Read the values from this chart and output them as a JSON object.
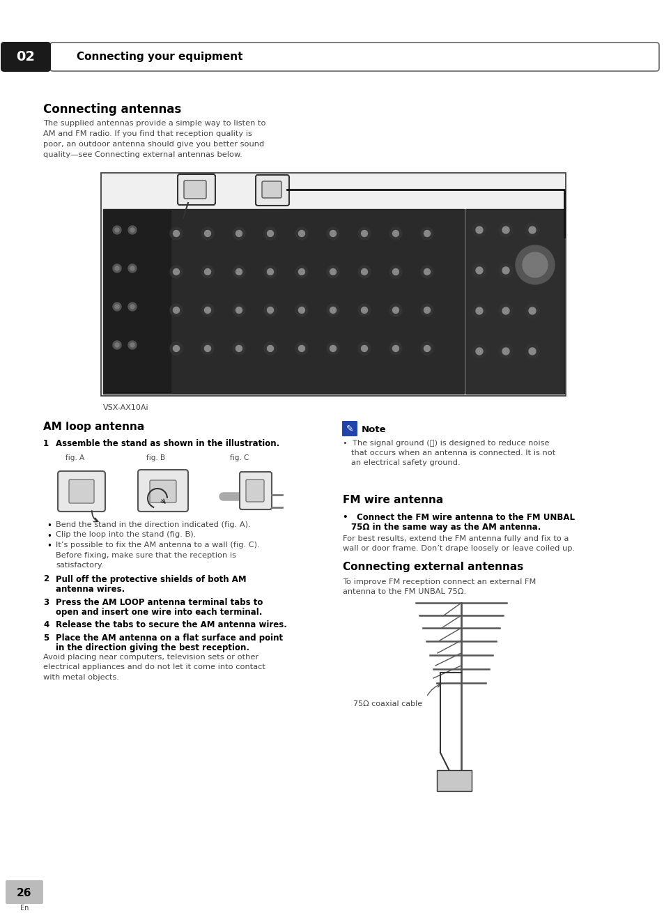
{
  "page_bg": "#ffffff",
  "header_bg": "#1a1a1a",
  "header_text": "Connecting your equipment",
  "header_number": "02",
  "section1_title": "Connecting antennas",
  "section1_body": "The supplied antennas provide a simple way to listen to\nAM and FM radio. If you find that reception quality is\npoor, an outdoor antenna should give you better sound\nquality—see Connecting external antennas below.",
  "device_label": "VSX-AX10Ai",
  "am_title": "AM loop antenna",
  "am_step1_num": "1",
  "am_step1_text": "Assemble the stand as shown in the illustration.",
  "fig_a": "fig. A",
  "fig_b": "fig. B",
  "fig_c": "fig. C",
  "bullet1": "Bend the stand in the direction indicated (fig. A).",
  "bullet2": "Clip the loop into the stand (fig. B).",
  "bullet3a": "It’s possible to fix the AM antenna to a wall (fig. C).",
  "bullet3b": "Before fixing, make sure that the reception is",
  "bullet3c": "satisfactory.",
  "am_step2_num": "2",
  "am_step2a": "Pull off the protective shields of both AM",
  "am_step2b": "antenna wires.",
  "am_step3_num": "3",
  "am_step3a": "Press the AM LOOP antenna terminal tabs to",
  "am_step3b": "open and insert one wire into each terminal.",
  "am_step4_num": "4",
  "am_step4": "Release the tabs to secure the AM antenna wires.",
  "am_step5_num": "5",
  "am_step5a": "Place the AM antenna on a flat surface and point",
  "am_step5b": "in the direction giving the best reception.",
  "am_step5c": "Avoid placing near computers, television sets or other",
  "am_step5d": "electrical appliances and do not let it come into contact",
  "am_step5e": "with metal objects.",
  "note_title": "Note",
  "note_bullet": "•  The signal ground (⎅) is designed to reduce noise",
  "note_b2": "that occurs when an antenna is connected. It is not",
  "note_b3": "an electrical safety ground.",
  "fm_title": "FM wire antenna",
  "fm_bullet_a": "•   Connect the FM wire antenna to the FM UNBAL",
  "fm_bullet_b": "75Ω in the same way as the AM antenna.",
  "fm_body2a": "For best results, extend the FM antenna fully and fix to a",
  "fm_body2b": "wall or door frame. Don’t drape loosely or leave coiled up.",
  "ext_title": "Connecting external antennas",
  "ext_body1": "To improve FM reception connect an external FM",
  "ext_body2": "antenna to the FM UNBAL 75Ω.",
  "coax_label": "75Ω coaxial cable",
  "page_number": "26",
  "page_lang": "En",
  "text_color": "#000000",
  "gray_text": "#444444",
  "line_gray": "#888888"
}
